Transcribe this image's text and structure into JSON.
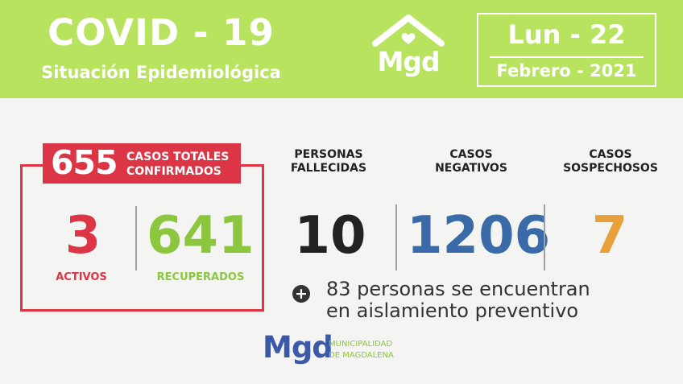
{
  "header": {
    "title": "COVID - 19",
    "subtitle": "Situación Epidemiológica",
    "logo_text": "Mgd",
    "date_day": "Lun - 22",
    "date_month": "Febrero - 2021"
  },
  "confirmed": {
    "total": "655",
    "label_line1": "CASOS TOTALES",
    "label_line2": "CONFIRMADOS",
    "active_value": "3",
    "active_label": "ACTIVOS",
    "recovered_value": "641",
    "recovered_label": "RECUPERADOS"
  },
  "deaths": {
    "label_line1": "PERSONAS",
    "label_line2": "FALLECIDAS",
    "value": "10"
  },
  "negative": {
    "label_line1": "CASOS",
    "label_line2": "NEGATIVOS",
    "value": "1206"
  },
  "suspected": {
    "label_line1": "CASOS",
    "label_line2": "SOSPECHOSOS",
    "value": "7"
  },
  "isolation": {
    "plus": "+",
    "line1": "83 personas se encuentran",
    "line2": "en aislamiento preventivo"
  },
  "footer": {
    "logo_text": "Mgd",
    "line1": "MUNICIPALIDAD",
    "line2": "DE MAGDALENA"
  },
  "colors": {
    "header_bg": "#b7e35e",
    "red": "#dc3545",
    "green": "#8cc63f",
    "blue": "#3a6aa8",
    "orange": "#e8a13a"
  }
}
